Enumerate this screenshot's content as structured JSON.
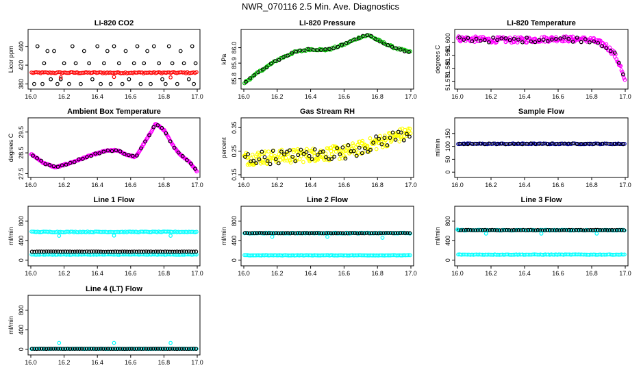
{
  "page_title": "NWR_070116  2.5 Min. Ave. Diagnostics",
  "chart_data": [
    {
      "type": "scatter",
      "title": "Li-820 CO2",
      "ylabel": "Licor ppm",
      "xlim": [
        16.0,
        17.0
      ],
      "ylim": [
        375,
        490
      ],
      "xticks": [
        "16.0",
        "16.2",
        "16.4",
        "16.6",
        "16.8",
        "17.0"
      ],
      "yticks": [
        {
          "v": 380,
          "label": "380"
        },
        {
          "v": 420,
          "label": "420"
        },
        {
          "v": 460,
          "label": "460"
        }
      ],
      "series": [
        {
          "color": "#000000",
          "points": [
            [
              16.02,
              380
            ],
            [
              16.04,
              460
            ],
            [
              16.07,
              380
            ],
            [
              16.08,
              424
            ],
            [
              16.1,
              450
            ],
            [
              16.12,
              390
            ],
            [
              16.14,
              450
            ],
            [
              16.16,
              380
            ],
            [
              16.18,
              390
            ],
            [
              16.2,
              424
            ],
            [
              16.23,
              380
            ],
            [
              16.25,
              460
            ],
            [
              16.27,
              424
            ],
            [
              16.3,
              380
            ],
            [
              16.32,
              450
            ],
            [
              16.35,
              424
            ],
            [
              16.37,
              390
            ],
            [
              16.4,
              460
            ],
            [
              16.42,
              380
            ],
            [
              16.44,
              424
            ],
            [
              16.46,
              450
            ],
            [
              16.48,
              380
            ],
            [
              16.5,
              460
            ],
            [
              16.53,
              424
            ],
            [
              16.55,
              380
            ],
            [
              16.57,
              450
            ],
            [
              16.59,
              390
            ],
            [
              16.62,
              424
            ],
            [
              16.64,
              460
            ],
            [
              16.66,
              380
            ],
            [
              16.68,
              424
            ],
            [
              16.7,
              450
            ],
            [
              16.72,
              380
            ],
            [
              16.74,
              460
            ],
            [
              16.77,
              424
            ],
            [
              16.79,
              390
            ],
            [
              16.81,
              380
            ],
            [
              16.83,
              460
            ],
            [
              16.85,
              424
            ],
            [
              16.88,
              380
            ],
            [
              16.9,
              450
            ],
            [
              16.92,
              424
            ],
            [
              16.95,
              390
            ],
            [
              16.97,
              460
            ],
            [
              16.98,
              380
            ],
            [
              16.99,
              424
            ]
          ]
        },
        {
          "color": "#ff0000",
          "band": {
            "y": 404,
            "jitter": 1.5,
            "n": 110
          }
        },
        {
          "color": "#ff0000",
          "points": [
            [
              16.18,
              394
            ],
            [
              16.5,
              395
            ],
            [
              16.84,
              394
            ]
          ]
        }
      ]
    },
    {
      "type": "scatter",
      "title": "Li-820 Pressure",
      "ylabel": "kPa",
      "xlim": [
        16.0,
        17.0
      ],
      "ylim": [
        85.75,
        86.1
      ],
      "xticks": [
        "16.0",
        "16.2",
        "16.4",
        "16.6",
        "16.8",
        "17.0"
      ],
      "yticks": [
        {
          "v": 85.8,
          "label": "85.8"
        },
        {
          "v": 85.9,
          "label": "85.9"
        },
        {
          "v": 86.0,
          "label": "86.0"
        }
      ],
      "series": [
        {
          "color": "#00c000",
          "curve": [
            [
              16.0,
              85.77
            ],
            [
              16.1,
              85.85
            ],
            [
              16.2,
              85.92
            ],
            [
              16.3,
              85.97
            ],
            [
              16.4,
              85.99
            ],
            [
              16.5,
              85.985
            ],
            [
              16.6,
              86.02
            ],
            [
              16.7,
              86.07
            ],
            [
              16.75,
              86.08
            ],
            [
              16.8,
              86.05
            ],
            [
              16.9,
              86.0
            ],
            [
              17.0,
              85.97
            ]
          ],
          "jitter": 0.006,
          "n": 120
        },
        {
          "color": "#000000",
          "curve": [
            [
              16.0,
              85.77
            ],
            [
              16.1,
              85.85
            ],
            [
              16.2,
              85.92
            ],
            [
              16.3,
              85.97
            ],
            [
              16.4,
              85.99
            ],
            [
              16.5,
              85.985
            ],
            [
              16.6,
              86.02
            ],
            [
              16.7,
              86.07
            ],
            [
              16.75,
              86.08
            ],
            [
              16.8,
              86.05
            ],
            [
              16.9,
              86.0
            ],
            [
              17.0,
              85.97
            ]
          ],
          "jitter": 0.005,
          "n": 40
        }
      ]
    },
    {
      "type": "scatter",
      "title": "Li-820 Temperature",
      "ylabel": "degrees C",
      "xlim": [
        16.0,
        17.0
      ],
      "ylim": [
        51.566,
        51.608
      ],
      "xticks": [
        "16.0",
        "16.2",
        "16.4",
        "16.6",
        "16.8",
        "17.0"
      ],
      "yticks": [
        {
          "v": 51.57,
          "label": "51.570"
        },
        {
          "v": 51.58,
          "label": "51.580"
        },
        {
          "v": 51.59,
          "label": "51.590"
        },
        {
          "v": 51.6,
          "label": "51.600"
        }
      ],
      "series": [
        {
          "color": "#ff00ff",
          "curve": [
            [
              16.0,
              51.603
            ],
            [
              16.2,
              51.602
            ],
            [
              16.4,
              51.602
            ],
            [
              16.6,
              51.603
            ],
            [
              16.8,
              51.602
            ],
            [
              16.88,
              51.598
            ],
            [
              16.93,
              51.592
            ],
            [
              16.97,
              51.582
            ],
            [
              17.0,
              51.568
            ]
          ],
          "jitter": 0.0022,
          "n": 200
        },
        {
          "color": "#000000",
          "curve": [
            [
              16.0,
              51.603
            ],
            [
              16.2,
              51.602
            ],
            [
              16.4,
              51.602
            ],
            [
              16.6,
              51.603
            ],
            [
              16.8,
              51.602
            ],
            [
              16.88,
              51.598
            ],
            [
              16.93,
              51.592
            ],
            [
              16.97,
              51.582
            ],
            [
              17.0,
              51.568
            ]
          ],
          "jitter": 0.002,
          "n": 40
        }
      ]
    },
    {
      "type": "scatter",
      "title": "Ambient Box Temperature",
      "ylabel": "degrees C",
      "xlim": [
        16.0,
        17.0
      ],
      "ylim": [
        27.45,
        30.05
      ],
      "xticks": [
        "16.0",
        "16.2",
        "16.4",
        "16.6",
        "16.8",
        "17.0"
      ],
      "yticks": [
        {
          "v": 27.5,
          "label": "27.5"
        },
        {
          "v": 28.5,
          "label": "28.5"
        },
        {
          "v": 29.5,
          "label": "29.5"
        }
      ],
      "series": [
        {
          "color": "#ff00ff",
          "curve": [
            [
              16.0,
              28.45
            ],
            [
              16.08,
              28.0
            ],
            [
              16.15,
              27.8
            ],
            [
              16.25,
              28.05
            ],
            [
              16.35,
              28.35
            ],
            [
              16.45,
              28.6
            ],
            [
              16.52,
              28.62
            ],
            [
              16.58,
              28.4
            ],
            [
              16.63,
              28.3
            ],
            [
              16.7,
              29.2
            ],
            [
              16.75,
              29.9
            ],
            [
              16.8,
              29.6
            ],
            [
              16.85,
              28.9
            ],
            [
              16.9,
              28.4
            ],
            [
              16.95,
              28.1
            ],
            [
              17.0,
              27.6
            ]
          ],
          "jitter": 0.03,
          "n": 220
        },
        {
          "color": "#000000",
          "curve": [
            [
              16.0,
              28.45
            ],
            [
              16.08,
              28.0
            ],
            [
              16.15,
              27.8
            ],
            [
              16.25,
              28.05
            ],
            [
              16.35,
              28.35
            ],
            [
              16.45,
              28.6
            ],
            [
              16.52,
              28.62
            ],
            [
              16.58,
              28.4
            ],
            [
              16.63,
              28.3
            ],
            [
              16.7,
              29.2
            ],
            [
              16.75,
              29.9
            ],
            [
              16.8,
              29.6
            ],
            [
              16.85,
              28.9
            ],
            [
              16.9,
              28.4
            ],
            [
              16.95,
              28.1
            ],
            [
              17.0,
              27.6
            ]
          ],
          "jitter": 0.03,
          "n": 40
        }
      ]
    },
    {
      "type": "scatter",
      "title": "Gas Stream RH",
      "ylabel": "percent",
      "xlim": [
        16.0,
        17.0
      ],
      "ylim": [
        0.15,
        0.38
      ],
      "xticks": [
        "16.0",
        "16.2",
        "16.4",
        "16.6",
        "16.8",
        "17.0"
      ],
      "yticks": [
        {
          "v": 0.15,
          "label": "0.15"
        },
        {
          "v": 0.25,
          "label": "0.25"
        },
        {
          "v": 0.35,
          "label": "0.35"
        }
      ],
      "series": [
        {
          "color": "#ffff00",
          "curve": [
            [
              16.0,
              0.22
            ],
            [
              16.3,
              0.23
            ],
            [
              16.6,
              0.245
            ],
            [
              16.75,
              0.275
            ],
            [
              16.9,
              0.31
            ],
            [
              17.0,
              0.33
            ]
          ],
          "jitter": 0.03,
          "n": 240
        },
        {
          "color": "#000000",
          "curve": [
            [
              16.0,
              0.22
            ],
            [
              16.3,
              0.23
            ],
            [
              16.6,
              0.245
            ],
            [
              16.75,
              0.275
            ],
            [
              16.9,
              0.31
            ],
            [
              17.0,
              0.33
            ]
          ],
          "jitter": 0.03,
          "n": 60
        }
      ]
    },
    {
      "type": "scatter",
      "title": "Sample Flow",
      "ylabel": "ml/min",
      "xlim": [
        16.0,
        17.0
      ],
      "ylim": [
        -10,
        200
      ],
      "xticks": [
        "16.0",
        "16.2",
        "16.4",
        "16.6",
        "16.8",
        "17.0"
      ],
      "yticks": [
        {
          "v": 0,
          "label": "0"
        },
        {
          "v": 50,
          "label": "50"
        },
        {
          "v": 100,
          "label": "100"
        },
        {
          "v": 150,
          "label": "150"
        }
      ],
      "series": [
        {
          "color": "#0000aa",
          "band": {
            "y": 110,
            "jitter": 1.5,
            "n": 110
          }
        },
        {
          "color": "#000000",
          "band": {
            "y": 110,
            "jitter": 1.5,
            "n": 40
          }
        }
      ]
    },
    {
      "type": "scatter",
      "title": "Line 1 Flow",
      "ylabel": "ml/min",
      "xlim": [
        16.0,
        17.0
      ],
      "ylim": [
        -60,
        1050
      ],
      "xticks": [
        "16.0",
        "16.2",
        "16.4",
        "16.6",
        "16.8",
        "17.0"
      ],
      "yticks": [
        {
          "v": 0,
          "label": "0"
        },
        {
          "v": 400,
          "label": "400"
        },
        {
          "v": 800,
          "label": "800"
        }
      ],
      "series": [
        {
          "color": "#00ffff",
          "band": {
            "y": 580,
            "jitter": 8,
            "n": 110
          }
        },
        {
          "color": "#00ffff",
          "band": {
            "y": 115,
            "jitter": 4,
            "n": 110
          }
        },
        {
          "color": "#000000",
          "band": {
            "y": 175,
            "jitter": 3,
            "n": 70
          }
        },
        {
          "color": "#00ffff",
          "points": [
            [
              16.17,
              500
            ],
            [
              16.5,
              505
            ],
            [
              16.84,
              500
            ]
          ]
        }
      ]
    },
    {
      "type": "scatter",
      "title": "Line 2 Flow",
      "ylabel": "ml/min",
      "xlim": [
        16.0,
        17.0
      ],
      "ylim": [
        -60,
        1050
      ],
      "xticks": [
        "16.0",
        "16.2",
        "16.4",
        "16.6",
        "16.8",
        "17.0"
      ],
      "yticks": [
        {
          "v": 0,
          "label": "0"
        },
        {
          "v": 400,
          "label": "400"
        },
        {
          "v": 800,
          "label": "800"
        }
      ],
      "series": [
        {
          "color": "#00ffff",
          "band": {
            "y": 555,
            "jitter": 8,
            "n": 110
          }
        },
        {
          "color": "#000000",
          "band": {
            "y": 555,
            "jitter": 4,
            "n": 70
          }
        },
        {
          "color": "#00ffff",
          "band": {
            "y": 100,
            "jitter": 4,
            "n": 110
          }
        },
        {
          "color": "#00ffff",
          "points": [
            [
              16.17,
              480
            ],
            [
              16.5,
              480
            ],
            [
              16.83,
              460
            ]
          ]
        }
      ]
    },
    {
      "type": "scatter",
      "title": "Line 3 Flow",
      "ylabel": "ml/min",
      "xlim": [
        16.0,
        17.0
      ],
      "ylim": [
        -60,
        1050
      ],
      "xticks": [
        "16.0",
        "16.2",
        "16.4",
        "16.6",
        "16.8",
        "17.0"
      ],
      "yticks": [
        {
          "v": 0,
          "label": "0"
        },
        {
          "v": 400,
          "label": "400"
        },
        {
          "v": 800,
          "label": "800"
        }
      ],
      "series": [
        {
          "color": "#00ffff",
          "band": {
            "y": 615,
            "jitter": 8,
            "n": 110
          }
        },
        {
          "color": "#000000",
          "band": {
            "y": 615,
            "jitter": 4,
            "n": 70
          }
        },
        {
          "color": "#00ffff",
          "band": {
            "y": 115,
            "jitter": 4,
            "n": 110
          }
        },
        {
          "color": "#00ffff",
          "points": [
            [
              16.0,
              630
            ],
            [
              16.17,
              545
            ],
            [
              16.5,
              545
            ],
            [
              16.83,
              545
            ]
          ]
        }
      ]
    },
    {
      "type": "scatter",
      "title": "Line 4 (LT) Flow",
      "ylabel": "ml/min",
      "xlim": [
        16.0,
        17.0
      ],
      "ylim": [
        -60,
        1050
      ],
      "xticks": [
        "16.0",
        "16.2",
        "16.4",
        "16.6",
        "16.8",
        "17.0"
      ],
      "yticks": [
        {
          "v": 0,
          "label": "0"
        },
        {
          "v": 400,
          "label": "400"
        },
        {
          "v": 800,
          "label": "800"
        }
      ],
      "series": [
        {
          "color": "#00ffff",
          "band": {
            "y": 10,
            "jitter": 3,
            "n": 110
          }
        },
        {
          "color": "#000000",
          "band": {
            "y": 10,
            "jitter": 2,
            "n": 70
          }
        },
        {
          "color": "#00ffff",
          "points": [
            [
              16.17,
              130
            ],
            [
              16.5,
              130
            ],
            [
              16.84,
              130
            ]
          ]
        }
      ]
    }
  ]
}
